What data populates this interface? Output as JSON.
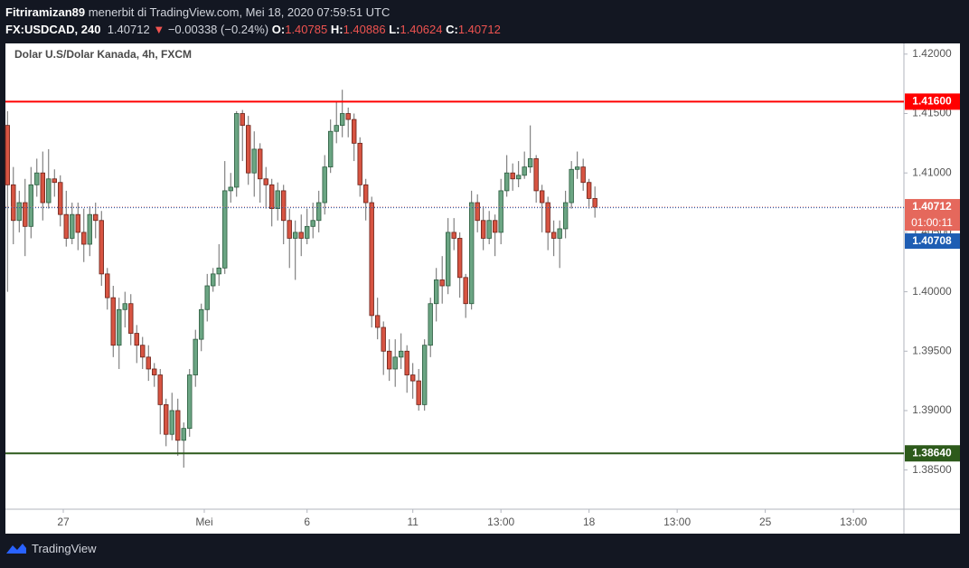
{
  "header": {
    "author": "Fitriramizan89",
    "published": "menerbit di TradingView.com, Mei 18, 2020 07:59:51 UTC",
    "symbol": "FX:USDCAD, 240",
    "last": "1.40712",
    "arrow": "▼",
    "change": "−0.00338 (−0.24%)",
    "o_label": "O:",
    "o": "1.40785",
    "h_label": "H:",
    "h": "1.40886",
    "l_label": "L:",
    "l": "1.40624",
    "c_label": "C:",
    "c": "1.40712"
  },
  "footer": {
    "brand": "TradingView"
  },
  "chart_data": {
    "type": "candlestick",
    "title": "Dolar U.S/Dolar Kanada, 4h, FXCM",
    "up_color": "#6ba583",
    "down_color": "#d75442",
    "xlim": [
      -0.35,
      152.6
    ],
    "xticks": [
      {
        "value": 9.5,
        "label": "27"
      },
      {
        "value": 33.5,
        "label": "Mei"
      },
      {
        "value": 51,
        "label": "6"
      },
      {
        "value": 69,
        "label": "11"
      },
      {
        "value": 84,
        "label": "13:00"
      },
      {
        "value": 99,
        "label": "18"
      },
      {
        "value": 114,
        "label": "13:00"
      },
      {
        "value": 129,
        "label": "25"
      },
      {
        "value": 144,
        "label": "13:00"
      }
    ],
    "ylim": [
      1.3817,
      1.4209
    ],
    "yticks": [
      {
        "value": 1.385,
        "label": "1.38500"
      },
      {
        "value": 1.39,
        "label": "1.39000"
      },
      {
        "value": 1.395,
        "label": "1.39500"
      },
      {
        "value": 1.4,
        "label": "1.40000"
      },
      {
        "value": 1.405,
        "label": "1.40500"
      },
      {
        "value": 1.41,
        "label": "1.41000"
      },
      {
        "value": 1.415,
        "label": "1.41500"
      },
      {
        "value": 1.42,
        "label": "1.42000"
      }
    ],
    "hlines": [
      {
        "value": 1.416,
        "label": "1.41600",
        "color": "#ff0000"
      },
      {
        "value": 1.3864,
        "label": "1.38640",
        "color": "#2d5a1b"
      }
    ],
    "last_price": {
      "value": 1.40712,
      "label": "1.40712",
      "countdown": "01:00:11",
      "color": "#e5685c"
    },
    "bid_price": {
      "value": 1.40708,
      "label": "1.40708",
      "color": "#1e5db3"
    },
    "x": [
      0,
      1,
      2,
      3,
      4,
      5,
      6,
      7,
      8,
      9,
      10,
      11,
      12,
      13,
      14,
      15,
      16,
      17,
      18,
      19,
      20,
      21,
      22,
      23,
      24,
      25,
      26,
      27,
      28,
      29,
      30,
      31,
      32,
      33,
      34,
      35,
      36,
      37,
      38,
      39,
      40,
      41,
      42,
      43,
      44,
      45,
      46,
      47,
      48,
      49,
      50,
      51,
      52,
      53,
      54,
      55,
      56,
      57,
      58,
      59,
      60,
      61,
      62,
      63,
      64,
      65,
      66,
      67,
      68,
      69,
      70,
      71,
      72,
      73,
      74,
      75,
      76,
      77,
      78,
      79,
      80,
      81,
      82,
      83,
      84,
      85,
      86,
      87,
      88,
      89,
      90,
      91,
      92,
      93,
      94,
      95,
      96,
      97,
      98,
      99,
      100
    ],
    "open": [
      1.414,
      1.409,
      1.406,
      1.4075,
      1.4055,
      1.409,
      1.41,
      1.4075,
      1.4095,
      1.4092,
      1.4065,
      1.4045,
      1.4065,
      1.405,
      1.404,
      1.4065,
      1.406,
      1.4015,
      1.3995,
      1.3955,
      1.3985,
      1.399,
      1.3965,
      1.3955,
      1.3945,
      1.3935,
      1.393,
      1.3905,
      1.388,
      1.39,
      1.3875,
      1.3885,
      1.393,
      1.396,
      1.3985,
      1.4005,
      1.4015,
      1.402,
      1.4085,
      1.4088,
      1.415,
      1.414,
      1.41,
      1.412,
      1.4095,
      1.409,
      1.407,
      1.4085,
      1.406,
      1.4045,
      1.405,
      1.4045,
      1.4055,
      1.406,
      1.4075,
      1.4105,
      1.4135,
      1.414,
      1.415,
      1.4145,
      1.4125,
      1.409,
      1.4075,
      1.398,
      1.397,
      1.395,
      1.3935,
      1.3945,
      1.395,
      1.393,
      1.3925,
      1.3905,
      1.3955,
      1.399,
      1.401,
      1.4005,
      1.405,
      1.4045,
      1.4012,
      1.399,
      1.4075,
      1.406,
      1.4045,
      1.406,
      1.405,
      1.4085,
      1.41,
      1.4095,
      1.4098,
      1.4105,
      1.4112,
      1.4085,
      1.4075,
      1.405,
      1.4045,
      1.4053,
      1.4075,
      1.4103,
      1.4105,
      1.4092,
      1.40785
    ],
    "high": [
      1.4152,
      1.4105,
      1.4085,
      1.4095,
      1.4105,
      1.4112,
      1.4118,
      1.412,
      1.4103,
      1.4098,
      1.4085,
      1.4075,
      1.4075,
      1.407,
      1.4072,
      1.4075,
      1.4068,
      1.402,
      1.4005,
      1.3995,
      1.4,
      1.3998,
      1.3972,
      1.3962,
      1.3955,
      1.394,
      1.3935,
      1.391,
      1.3915,
      1.391,
      1.389,
      1.3935,
      1.3968,
      1.399,
      1.4015,
      1.402,
      1.404,
      1.411,
      1.41,
      1.4152,
      1.4153,
      1.4148,
      1.4135,
      1.4125,
      1.4105,
      1.4095,
      1.4092,
      1.409,
      1.407,
      1.406,
      1.4065,
      1.407,
      1.4075,
      1.4085,
      1.4115,
      1.4145,
      1.416,
      1.417,
      1.4155,
      1.415,
      1.413,
      1.4095,
      1.408,
      1.3995,
      1.3975,
      1.396,
      1.396,
      1.3965,
      1.3955,
      1.394,
      1.3935,
      1.396,
      1.3995,
      1.402,
      1.403,
      1.4062,
      1.4062,
      1.405,
      1.4015,
      1.4085,
      1.4082,
      1.4072,
      1.4068,
      1.4065,
      1.4095,
      1.4115,
      1.4108,
      1.411,
      1.4118,
      1.414,
      1.4115,
      1.409,
      1.408,
      1.406,
      1.406,
      1.4085,
      1.411,
      1.4118,
      1.4112,
      1.4095,
      1.40886
    ],
    "low": [
      1.4,
      1.404,
      1.405,
      1.403,
      1.4045,
      1.408,
      1.406,
      1.407,
      1.408,
      1.4055,
      1.4038,
      1.404,
      1.4035,
      1.4025,
      1.403,
      1.4045,
      1.4005,
      1.3985,
      1.3945,
      1.3935,
      1.397,
      1.3955,
      1.394,
      1.3935,
      1.3925,
      1.392,
      1.388,
      1.387,
      1.3875,
      1.3862,
      1.3852,
      1.3878,
      1.392,
      1.395,
      1.3975,
      1.4,
      1.4005,
      1.4015,
      1.4075,
      1.408,
      1.411,
      1.409,
      1.408,
      1.4075,
      1.407,
      1.4055,
      1.406,
      1.404,
      1.402,
      1.401,
      1.403,
      1.404,
      1.4045,
      1.405,
      1.4065,
      1.41,
      1.4125,
      1.413,
      1.413,
      1.411,
      1.408,
      1.406,
      1.397,
      1.396,
      1.393,
      1.3925,
      1.392,
      1.3935,
      1.3915,
      1.391,
      1.39,
      1.39,
      1.3945,
      1.3975,
      1.399,
      1.3998,
      1.4035,
      1.3995,
      1.3978,
      1.3985,
      1.405,
      1.4035,
      1.404,
      1.403,
      1.404,
      1.408,
      1.4085,
      1.4088,
      1.4095,
      1.41,
      1.4075,
      1.405,
      1.4035,
      1.403,
      1.402,
      1.4045,
      1.407,
      1.4095,
      1.4085,
      1.407,
      1.40624
    ],
    "close": [
      1.409,
      1.406,
      1.4075,
      1.4055,
      1.409,
      1.41,
      1.4075,
      1.4095,
      1.4092,
      1.4065,
      1.4045,
      1.4065,
      1.405,
      1.404,
      1.4065,
      1.406,
      1.4015,
      1.3995,
      1.3955,
      1.3985,
      1.399,
      1.3965,
      1.3955,
      1.3945,
      1.3935,
      1.393,
      1.3905,
      1.388,
      1.39,
      1.3875,
      1.3885,
      1.393,
      1.396,
      1.3985,
      1.4005,
      1.4015,
      1.402,
      1.4085,
      1.4088,
      1.415,
      1.414,
      1.41,
      1.412,
      1.4095,
      1.409,
      1.407,
      1.4085,
      1.406,
      1.4045,
      1.405,
      1.4045,
      1.4055,
      1.406,
      1.4075,
      1.4105,
      1.4135,
      1.414,
      1.415,
      1.4145,
      1.4125,
      1.409,
      1.4075,
      1.398,
      1.397,
      1.395,
      1.3935,
      1.3945,
      1.395,
      1.393,
      1.3925,
      1.3905,
      1.3955,
      1.399,
      1.401,
      1.4005,
      1.405,
      1.4045,
      1.4012,
      1.399,
      1.4075,
      1.406,
      1.4045,
      1.406,
      1.405,
      1.4085,
      1.41,
      1.4095,
      1.4098,
      1.4105,
      1.4112,
      1.4085,
      1.4075,
      1.405,
      1.4045,
      1.4053,
      1.4075,
      1.4103,
      1.4105,
      1.4092,
      1.40785,
      1.40712
    ]
  }
}
